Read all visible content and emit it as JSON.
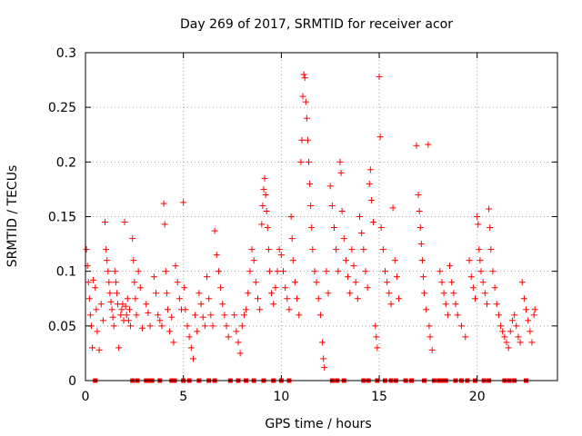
{
  "chart_data": {
    "type": "scatter",
    "title": "Day 269 of 2017, SRMTID for receiver acor",
    "xlabel": "GPS time / hours",
    "ylabel": "SRMTID / TECUs",
    "xlim": [
      0,
      24.1
    ],
    "ylim": [
      0,
      0.3
    ],
    "xticks": [
      0,
      5,
      10,
      15,
      20
    ],
    "xtick_labels": [
      "0",
      "5",
      "10",
      "15",
      "20"
    ],
    "yticks": [
      0,
      0.05,
      0.1,
      0.15,
      0.2,
      0.25,
      0.3
    ],
    "ytick_labels": [
      "0",
      "0.05",
      "0.1",
      "0.15",
      "0.2",
      "0.25",
      "0.3"
    ],
    "grid": true,
    "marker": "+",
    "color": "#ff0000",
    "series": [
      {
        "name": "SRMTID",
        "points": [
          [
            0.05,
            0.12
          ],
          [
            0.1,
            0.105
          ],
          [
            0.15,
            0.09
          ],
          [
            0.2,
            0.075
          ],
          [
            0.25,
            0.06
          ],
          [
            0.3,
            0.05
          ],
          [
            0.35,
            0.03
          ],
          [
            0.4,
            0.092
          ],
          [
            0.5,
            0.085
          ],
          [
            0.55,
            0.065
          ],
          [
            0.6,
            0.045
          ],
          [
            0.7,
            0.028
          ],
          [
            0.8,
            0.07
          ],
          [
            0.9,
            0.055
          ],
          [
            1.0,
            0.145
          ],
          [
            1.05,
            0.12
          ],
          [
            1.1,
            0.11
          ],
          [
            1.15,
            0.1
          ],
          [
            1.2,
            0.09
          ],
          [
            1.25,
            0.08
          ],
          [
            1.3,
            0.072
          ],
          [
            1.35,
            0.065
          ],
          [
            1.4,
            0.058
          ],
          [
            1.45,
            0.05
          ],
          [
            1.5,
            0.1
          ],
          [
            1.55,
            0.09
          ],
          [
            1.6,
            0.08
          ],
          [
            1.65,
            0.07
          ],
          [
            1.7,
            0.03
          ],
          [
            1.8,
            0.06
          ],
          [
            1.85,
            0.065
          ],
          [
            1.9,
            0.07
          ],
          [
            1.95,
            0.055
          ],
          [
            2.0,
            0.145
          ],
          [
            2.05,
            0.068
          ],
          [
            2.1,
            0.06
          ],
          [
            2.15,
            0.075
          ],
          [
            2.2,
            0.055
          ],
          [
            2.25,
            0.065
          ],
          [
            2.3,
            0.05
          ],
          [
            2.4,
            0.13
          ],
          [
            2.45,
            0.11
          ],
          [
            2.5,
            0.09
          ],
          [
            2.55,
            0.075
          ],
          [
            2.6,
            0.06
          ],
          [
            2.7,
            0.1
          ],
          [
            2.8,
            0.085
          ],
          [
            2.9,
            0.048
          ],
          [
            3.1,
            0.07
          ],
          [
            3.2,
            0.062
          ],
          [
            3.3,
            0.05
          ],
          [
            3.5,
            0.095
          ],
          [
            3.6,
            0.08
          ],
          [
            3.7,
            0.06
          ],
          [
            3.8,
            0.055
          ],
          [
            3.9,
            0.05
          ],
          [
            4.0,
            0.162
          ],
          [
            4.05,
            0.143
          ],
          [
            4.1,
            0.1
          ],
          [
            4.15,
            0.08
          ],
          [
            4.2,
            0.065
          ],
          [
            4.3,
            0.045
          ],
          [
            4.4,
            0.058
          ],
          [
            4.5,
            0.035
          ],
          [
            4.6,
            0.105
          ],
          [
            4.7,
            0.09
          ],
          [
            4.8,
            0.075
          ],
          [
            4.9,
            0.065
          ],
          [
            5.0,
            0.163
          ],
          [
            5.05,
            0.085
          ],
          [
            5.1,
            0.065
          ],
          [
            5.2,
            0.05
          ],
          [
            5.3,
            0.04
          ],
          [
            5.4,
            0.03
          ],
          [
            5.5,
            0.02
          ],
          [
            5.6,
            0.06
          ],
          [
            5.7,
            0.045
          ],
          [
            5.8,
            0.08
          ],
          [
            5.9,
            0.07
          ],
          [
            6.0,
            0.058
          ],
          [
            6.1,
            0.05
          ],
          [
            6.2,
            0.095
          ],
          [
            6.3,
            0.075
          ],
          [
            6.4,
            0.06
          ],
          [
            6.5,
            0.05
          ],
          [
            6.6,
            0.137
          ],
          [
            6.7,
            0.115
          ],
          [
            6.8,
            0.1
          ],
          [
            6.9,
            0.085
          ],
          [
            7.0,
            0.07
          ],
          [
            7.1,
            0.06
          ],
          [
            7.2,
            0.05
          ],
          [
            7.3,
            0.04
          ],
          [
            7.6,
            0.06
          ],
          [
            7.7,
            0.045
          ],
          [
            7.8,
            0.035
          ],
          [
            7.9,
            0.025
          ],
          [
            8.0,
            0.05
          ],
          [
            8.1,
            0.06
          ],
          [
            8.2,
            0.065
          ],
          [
            8.3,
            0.08
          ],
          [
            8.4,
            0.1
          ],
          [
            8.5,
            0.12
          ],
          [
            8.6,
            0.11
          ],
          [
            8.7,
            0.09
          ],
          [
            8.8,
            0.075
          ],
          [
            8.9,
            0.065
          ],
          [
            9.0,
            0.143
          ],
          [
            9.05,
            0.16
          ],
          [
            9.1,
            0.175
          ],
          [
            9.15,
            0.185
          ],
          [
            9.2,
            0.17
          ],
          [
            9.25,
            0.155
          ],
          [
            9.3,
            0.14
          ],
          [
            9.35,
            0.12
          ],
          [
            9.4,
            0.1
          ],
          [
            9.5,
            0.08
          ],
          [
            9.6,
            0.07
          ],
          [
            9.7,
            0.085
          ],
          [
            9.8,
            0.1
          ],
          [
            9.9,
            0.12
          ],
          [
            10.0,
            0.115
          ],
          [
            10.1,
            0.1
          ],
          [
            10.2,
            0.085
          ],
          [
            10.3,
            0.075
          ],
          [
            10.4,
            0.065
          ],
          [
            10.5,
            0.15
          ],
          [
            10.55,
            0.13
          ],
          [
            10.6,
            0.11
          ],
          [
            10.7,
            0.09
          ],
          [
            10.8,
            0.075
          ],
          [
            10.9,
            0.06
          ],
          [
            11.0,
            0.2
          ],
          [
            11.05,
            0.22
          ],
          [
            11.1,
            0.26
          ],
          [
            11.15,
            0.28
          ],
          [
            11.2,
            0.277
          ],
          [
            11.25,
            0.255
          ],
          [
            11.3,
            0.24
          ],
          [
            11.35,
            0.22
          ],
          [
            11.4,
            0.2
          ],
          [
            11.45,
            0.18
          ],
          [
            11.5,
            0.16
          ],
          [
            11.55,
            0.14
          ],
          [
            11.6,
            0.12
          ],
          [
            11.7,
            0.1
          ],
          [
            11.8,
            0.09
          ],
          [
            11.9,
            0.075
          ],
          [
            12.0,
            0.06
          ],
          [
            12.1,
            0.035
          ],
          [
            12.15,
            0.02
          ],
          [
            12.2,
            0.012
          ],
          [
            12.3,
            0.1
          ],
          [
            12.4,
            0.08
          ],
          [
            12.5,
            0.178
          ],
          [
            12.6,
            0.16
          ],
          [
            12.7,
            0.14
          ],
          [
            12.8,
            0.12
          ],
          [
            12.9,
            0.1
          ],
          [
            13.0,
            0.2
          ],
          [
            13.05,
            0.19
          ],
          [
            13.1,
            0.155
          ],
          [
            13.2,
            0.13
          ],
          [
            13.3,
            0.11
          ],
          [
            13.4,
            0.095
          ],
          [
            13.5,
            0.08
          ],
          [
            13.6,
            0.12
          ],
          [
            13.7,
            0.105
          ],
          [
            13.8,
            0.09
          ],
          [
            13.9,
            0.075
          ],
          [
            14.0,
            0.15
          ],
          [
            14.1,
            0.135
          ],
          [
            14.2,
            0.12
          ],
          [
            14.3,
            0.1
          ],
          [
            14.4,
            0.085
          ],
          [
            14.5,
            0.18
          ],
          [
            14.55,
            0.193
          ],
          [
            14.6,
            0.165
          ],
          [
            14.7,
            0.145
          ],
          [
            14.8,
            0.05
          ],
          [
            14.85,
            0.04
          ],
          [
            14.9,
            0.03
          ],
          [
            15.0,
            0.278
          ],
          [
            15.05,
            0.223
          ],
          [
            15.1,
            0.14
          ],
          [
            15.2,
            0.12
          ],
          [
            15.3,
            0.1
          ],
          [
            15.4,
            0.09
          ],
          [
            15.5,
            0.08
          ],
          [
            15.6,
            0.07
          ],
          [
            15.7,
            0.158
          ],
          [
            15.8,
            0.11
          ],
          [
            15.9,
            0.095
          ],
          [
            16.0,
            0.075
          ],
          [
            16.9,
            0.215
          ],
          [
            17.0,
            0.17
          ],
          [
            17.05,
            0.155
          ],
          [
            17.1,
            0.14
          ],
          [
            17.15,
            0.125
          ],
          [
            17.2,
            0.11
          ],
          [
            17.25,
            0.095
          ],
          [
            17.3,
            0.08
          ],
          [
            17.4,
            0.065
          ],
          [
            17.5,
            0.216
          ],
          [
            17.55,
            0.05
          ],
          [
            17.6,
            0.04
          ],
          [
            17.7,
            0.028
          ],
          [
            18.1,
            0.1
          ],
          [
            18.2,
            0.09
          ],
          [
            18.3,
            0.08
          ],
          [
            18.4,
            0.07
          ],
          [
            18.5,
            0.06
          ],
          [
            18.6,
            0.105
          ],
          [
            18.7,
            0.09
          ],
          [
            18.8,
            0.08
          ],
          [
            18.9,
            0.07
          ],
          [
            19.0,
            0.06
          ],
          [
            19.2,
            0.05
          ],
          [
            19.4,
            0.04
          ],
          [
            19.6,
            0.11
          ],
          [
            19.7,
            0.095
          ],
          [
            19.8,
            0.085
          ],
          [
            19.9,
            0.075
          ],
          [
            20.0,
            0.15
          ],
          [
            20.05,
            0.143
          ],
          [
            20.1,
            0.12
          ],
          [
            20.15,
            0.11
          ],
          [
            20.2,
            0.1
          ],
          [
            20.3,
            0.09
          ],
          [
            20.4,
            0.08
          ],
          [
            20.5,
            0.07
          ],
          [
            20.6,
            0.157
          ],
          [
            20.65,
            0.14
          ],
          [
            20.7,
            0.12
          ],
          [
            20.8,
            0.1
          ],
          [
            20.9,
            0.085
          ],
          [
            21.0,
            0.07
          ],
          [
            21.1,
            0.06
          ],
          [
            21.2,
            0.05
          ],
          [
            21.3,
            0.045
          ],
          [
            21.4,
            0.04
          ],
          [
            21.5,
            0.035
          ],
          [
            21.6,
            0.03
          ],
          [
            21.7,
            0.045
          ],
          [
            21.8,
            0.055
          ],
          [
            21.9,
            0.06
          ],
          [
            22.0,
            0.05
          ],
          [
            22.1,
            0.04
          ],
          [
            22.2,
            0.035
          ],
          [
            22.3,
            0.09
          ],
          [
            22.4,
            0.075
          ],
          [
            22.5,
            0.065
          ],
          [
            22.6,
            0.055
          ],
          [
            22.7,
            0.045
          ],
          [
            22.8,
            0.035
          ],
          [
            22.9,
            0.06
          ],
          [
            22.95,
            0.065
          ]
        ]
      }
    ],
    "zero_value_hours": [
      0.5,
      2.4,
      2.65,
      3.1,
      3.3,
      3.4,
      3.8,
      4.4,
      4.55,
      5.0,
      5.3,
      5.8,
      6.3,
      6.6,
      7.4,
      7.8,
      8.2,
      8.6,
      9.1,
      9.6,
      10.0,
      10.4,
      12.6,
      12.85,
      13.2,
      14.2,
      14.45,
      14.9,
      15.3,
      15.6,
      15.85,
      16.35,
      16.65,
      17.3,
      17.8,
      18.05,
      18.2,
      18.4,
      18.9,
      19.2,
      19.5,
      19.9,
      20.35,
      20.6,
      21.4,
      21.65,
      21.9,
      22.5
    ]
  }
}
